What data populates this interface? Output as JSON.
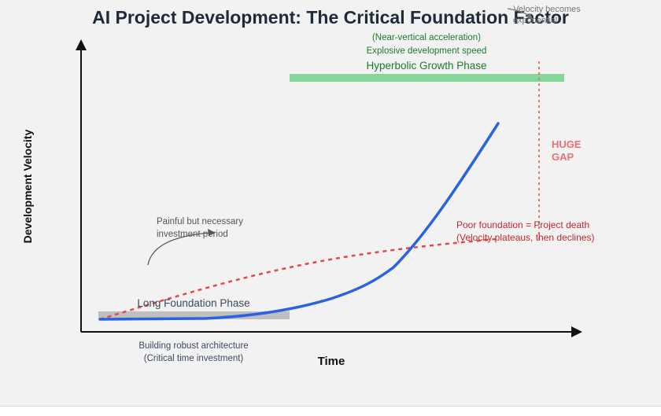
{
  "title": "AI Project Development: The Critical Foundation Factor",
  "axes": {
    "x_label": "Time",
    "y_label": "Development Velocity"
  },
  "phases": {
    "foundation": {
      "label": "Long Foundation Phase",
      "note_line1": "Building robust architecture",
      "note_line2": "(Critical time investment)",
      "color": "#bfbfbf"
    },
    "hyperbolic": {
      "label": "Hyperbolic Growth Phase",
      "note_line1": "Explosive development speed",
      "note_line2": "(Near-vertical acceleration)",
      "top_line1": "Velocity becomes",
      "top_line2": "exponential",
      "color": "#86d79a"
    }
  },
  "annotations": {
    "painful_line1": "Painful but necessary",
    "painful_line2": "investment period",
    "poor_line1": "Poor foundation = Project death",
    "poor_line2": "(Velocity plateaus, then declines)",
    "gap_line1": "HUGE",
    "gap_line2": "GAP"
  },
  "colors": {
    "strong_curve": "#2a63e0",
    "poor_curve": "#e24a4a",
    "gap": "#f07070",
    "green_text": "#1e7a2e",
    "red_text": "#c0282d",
    "title": "#1f2a3c"
  }
}
